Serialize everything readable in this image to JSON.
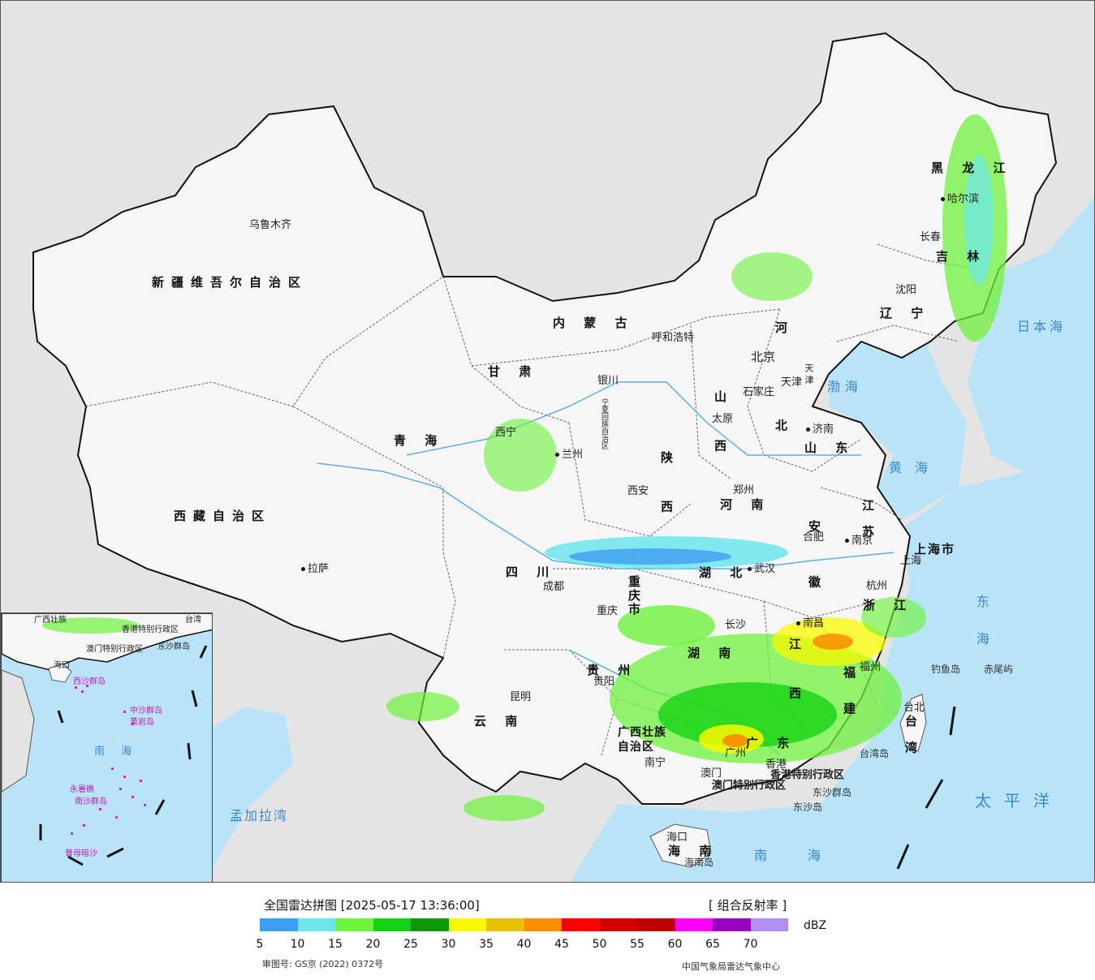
{
  "map": {
    "provinces": [
      {
        "id": "xinjiang",
        "label": "新疆维吾尔自治区"
      },
      {
        "id": "xizang",
        "label": "西藏自治区"
      },
      {
        "id": "qinghai",
        "label": "青 海"
      },
      {
        "id": "gansu",
        "label": "甘 肃"
      },
      {
        "id": "neimenggu",
        "label": "内 蒙 古"
      },
      {
        "id": "ningxia",
        "label": "宁夏回族自治区"
      },
      {
        "id": "sichuan",
        "label": "四 川"
      },
      {
        "id": "yunnan",
        "label": "云 南"
      },
      {
        "id": "guizhou",
        "label": "贵 州"
      },
      {
        "id": "chongqing",
        "label": "重庆市"
      },
      {
        "id": "shaanxi",
        "label": "陕 西"
      },
      {
        "id": "shanxi",
        "label": "山 西"
      },
      {
        "id": "hebei",
        "label": "河 北"
      },
      {
        "id": "henan",
        "label": "河 南"
      },
      {
        "id": "hubei",
        "label": "湖 北"
      },
      {
        "id": "hunan",
        "label": "湖 南"
      },
      {
        "id": "guangxi",
        "label": "广西壮族自治区"
      },
      {
        "id": "guangdong",
        "label": "广 东"
      },
      {
        "id": "jiangxi",
        "label": "江 西"
      },
      {
        "id": "fujian",
        "label": "福 建"
      },
      {
        "id": "zhejiang",
        "label": "浙 江"
      },
      {
        "id": "anhui",
        "label": "安 徽"
      },
      {
        "id": "jiangsu",
        "label": "江 苏"
      },
      {
        "id": "shandong",
        "label": "山 东"
      },
      {
        "id": "shanghai",
        "label": "上海市"
      },
      {
        "id": "tianjin",
        "label": "天 津"
      },
      {
        "id": "liaoning",
        "label": "辽 宁"
      },
      {
        "id": "jilin",
        "label": "吉 林"
      },
      {
        "id": "heilongjiang",
        "label": "黑 龙 江"
      },
      {
        "id": "hainan",
        "label": "海 南"
      },
      {
        "id": "taiwan",
        "label": "台 湾"
      },
      {
        "id": "hongkong",
        "label": "香港特别行政区"
      },
      {
        "id": "macau",
        "label": "澳门特别行政区"
      }
    ],
    "cities": [
      {
        "id": "urumqi",
        "label": "乌鲁木齐"
      },
      {
        "id": "lhasa",
        "label": "拉萨"
      },
      {
        "id": "xining",
        "label": "西宁"
      },
      {
        "id": "lanzhou",
        "label": "兰州"
      },
      {
        "id": "yinchuan",
        "label": "银川"
      },
      {
        "id": "hohhot",
        "label": "呼和浩特"
      },
      {
        "id": "beijing",
        "label": "北京"
      },
      {
        "id": "tianjin_city",
        "label": "天津"
      },
      {
        "id": "shijiazhuang",
        "label": "石家庄"
      },
      {
        "id": "taiyuan",
        "label": "太原"
      },
      {
        "id": "jinan",
        "label": "济南"
      },
      {
        "id": "zhengzhou",
        "label": "郑州"
      },
      {
        "id": "xian",
        "label": "西安"
      },
      {
        "id": "chengdu",
        "label": "成都"
      },
      {
        "id": "chongqing_city",
        "label": "重庆"
      },
      {
        "id": "guiyang",
        "label": "贵阳"
      },
      {
        "id": "kunming",
        "label": "昆明"
      },
      {
        "id": "nanning",
        "label": "南宁"
      },
      {
        "id": "guangzhou",
        "label": "广州"
      },
      {
        "id": "changsha",
        "label": "长沙"
      },
      {
        "id": "wuhan",
        "label": "武汉"
      },
      {
        "id": "hefei",
        "label": "合肥"
      },
      {
        "id": "nanjing",
        "label": "南京"
      },
      {
        "id": "shanghai_city",
        "label": "上海"
      },
      {
        "id": "hangzhou",
        "label": "杭州"
      },
      {
        "id": "nanchang",
        "label": "南昌"
      },
      {
        "id": "fuzhou",
        "label": "福州"
      },
      {
        "id": "taibei",
        "label": "台北"
      },
      {
        "id": "haikou",
        "label": "海口"
      },
      {
        "id": "hongkong_city",
        "label": "香港"
      },
      {
        "id": "macau_city",
        "label": "澳门"
      },
      {
        "id": "shenyang",
        "label": "沈阳"
      },
      {
        "id": "changchun",
        "label": "长春"
      },
      {
        "id": "harbin",
        "label": "哈尔滨"
      }
    ],
    "seas": [
      {
        "id": "bohai",
        "label": "渤海"
      },
      {
        "id": "huanghai",
        "label": "黄海"
      },
      {
        "id": "donghai",
        "label": "东海"
      },
      {
        "id": "nanhai",
        "label": "南海"
      },
      {
        "id": "riben_hai",
        "label": "日本海"
      },
      {
        "id": "taipingyang",
        "label": "太平洋"
      },
      {
        "id": "mengjiala",
        "label": "孟加拉湾"
      }
    ],
    "islands": [
      {
        "id": "diaoyu",
        "label": "钓鱼岛"
      },
      {
        "id": "chiwei",
        "label": "赤尾屿"
      },
      {
        "id": "dongsha",
        "label": "东沙群岛"
      },
      {
        "id": "dongsha_dao",
        "label": "东沙岛"
      },
      {
        "id": "taiwan_dao",
        "label": "台湾岛"
      },
      {
        "id": "hainan_dao",
        "label": "海南岛"
      }
    ],
    "inset": {
      "labels": [
        {
          "id": "in_guangxi",
          "label": "广西壮族"
        },
        {
          "id": "in_hk",
          "label": "香港特别行政区"
        },
        {
          "id": "in_mo",
          "label": "澳门特别行政区"
        },
        {
          "id": "in_taiwan",
          "label": "台湾"
        },
        {
          "id": "in_dongsha",
          "label": "东沙群岛"
        },
        {
          "id": "in_haikou",
          "label": "海口"
        },
        {
          "id": "in_xisha",
          "label": "西沙群岛"
        },
        {
          "id": "in_zhongsha",
          "label": "中沙群岛"
        },
        {
          "id": "in_huangyan",
          "label": "黄岩岛"
        },
        {
          "id": "in_nanhai",
          "label": "南 海"
        },
        {
          "id": "in_nansha",
          "label": "南沙群岛"
        },
        {
          "id": "in_yongshu",
          "label": "永暑礁"
        },
        {
          "id": "in_zengmu",
          "label": "曾母暗沙"
        }
      ]
    }
  },
  "legend": {
    "title": "全国雷达拼图 [2025-05-17 13:36:00]",
    "product": "[ 组合反射率 ]",
    "unit": "dBZ",
    "colors": [
      "#3c9ef0",
      "#6ce6ec",
      "#6ef23c",
      "#14d214",
      "#0c9a0c",
      "#f8f800",
      "#e6c200",
      "#fa8c00",
      "#fc0000",
      "#d40000",
      "#be0000",
      "#fc00fc",
      "#9800be",
      "#ad90f0"
    ],
    "ticks": [
      "5",
      "10",
      "15",
      "20",
      "25",
      "30",
      "35",
      "40",
      "45",
      "50",
      "55",
      "60",
      "65",
      "70"
    ],
    "approval": "审图号: GS京 (2022) 0372号",
    "producer": "中国气象局雷达气象中心"
  },
  "theme": {
    "sea": "#b9e4f8",
    "land_cn": "#f6f6f6",
    "land_foreign": "#e4e4e4",
    "river": "#5ab0e6"
  }
}
